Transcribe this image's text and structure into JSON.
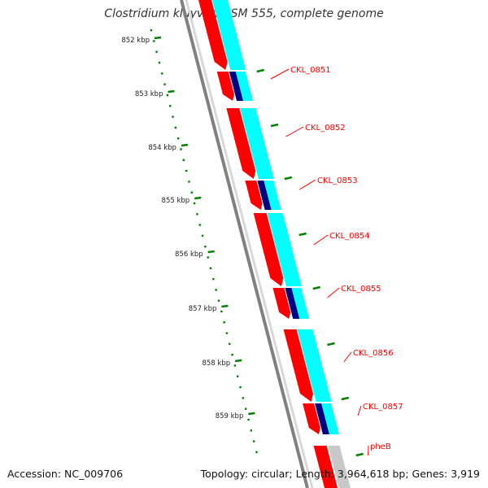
{
  "title": "Clostridium kluyveri DSM 555, complete genome",
  "accession": "Accession: NC_009706",
  "summary": "Topology: circular; Length: 3,964,618 bp; Genes: 3,919",
  "scale_labels": [
    "852 kbp",
    "853 kbp",
    "854 kbp",
    "855 kbp",
    "856 kbp",
    "857 kbp",
    "858 kbp",
    "859 kbp"
  ],
  "gene_labels": [
    "CKL_0851",
    "CKL_0852",
    "CKL_0853",
    "CKL_0854",
    "CKL_0855",
    "CKL_0856",
    "CKL_0857",
    "pheB"
  ],
  "colors": {
    "gene": "#ff0000",
    "cds_dark": "#000080",
    "cds_light": "#00ffff",
    "label": "#ff0000",
    "scale": "#008000",
    "backbone": "#808080"
  }
}
